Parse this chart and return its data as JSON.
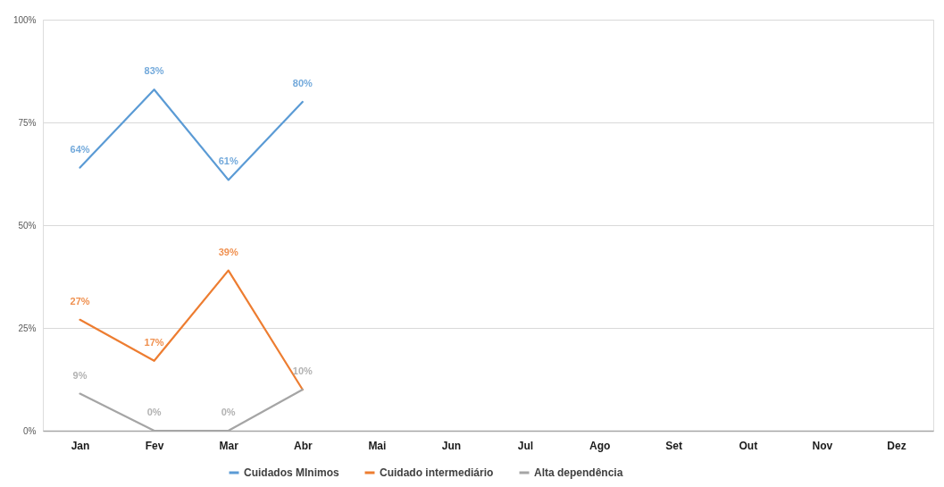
{
  "chart_data": {
    "type": "line",
    "categories": [
      "Jan",
      "Fev",
      "Mar",
      "Abr",
      "Mai",
      "Jun",
      "Jul",
      "Ago",
      "Set",
      "Out",
      "Nov",
      "Dez"
    ],
    "ylim": [
      0,
      100
    ],
    "yticks": [
      {
        "value": 0,
        "label": "0%"
      },
      {
        "value": 25,
        "label": "25%"
      },
      {
        "value": 50,
        "label": "50%"
      },
      {
        "value": 75,
        "label": "75%"
      },
      {
        "value": 100,
        "label": "100%"
      }
    ],
    "grid": "y",
    "legend": "bottom",
    "series": [
      {
        "name": "Cuidados MInimos",
        "color": "#5b9bd5",
        "values": [
          64,
          83,
          61,
          80,
          null,
          null,
          null,
          null,
          null,
          null,
          null,
          null
        ],
        "value_labels": [
          "64%",
          "83%",
          "61%",
          "80%",
          null,
          null,
          null,
          null,
          null,
          null,
          null,
          null
        ]
      },
      {
        "name": "Cuidado intermediário",
        "color": "#ed7d31",
        "values": [
          27,
          17,
          39,
          10,
          null,
          null,
          null,
          null,
          null,
          null,
          null,
          null
        ],
        "value_labels": [
          "27%",
          "17%",
          "39%",
          null,
          null,
          null,
          null,
          null,
          null,
          null,
          null,
          null
        ]
      },
      {
        "name": "Alta dependência",
        "color": "#a5a5a5",
        "values": [
          9,
          0,
          0,
          10,
          null,
          null,
          null,
          null,
          null,
          null,
          null,
          null
        ],
        "value_labels": [
          "9%",
          "0%",
          "0%",
          "10%",
          null,
          null,
          null,
          null,
          null,
          null,
          null,
          null
        ]
      }
    ]
  }
}
